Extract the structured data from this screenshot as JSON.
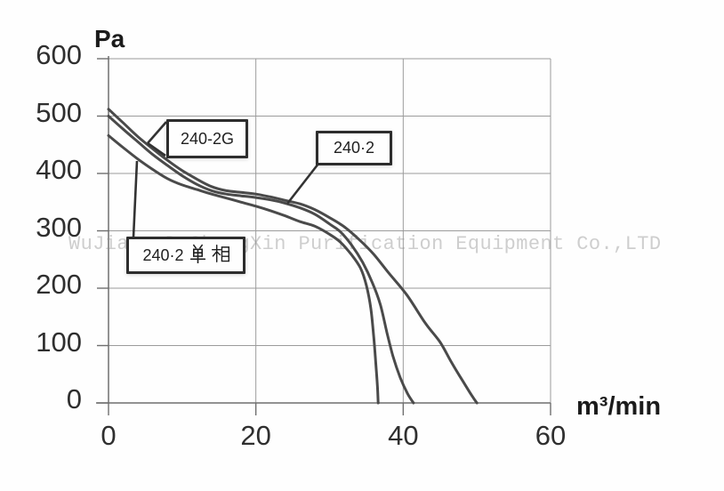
{
  "axes": {
    "y_unit": "Pa",
    "x_unit": "m³/min",
    "y_ticks": [
      600,
      500,
      400,
      300,
      200,
      100,
      0
    ],
    "x_ticks": [
      0,
      20,
      40,
      60
    ]
  },
  "watermark": "WuJiang DeShengXin Purification Equipment Co.,LTD",
  "annotations": [
    {
      "label": "240-2G"
    },
    {
      "label": "240·2"
    },
    {
      "label": "240·2 单相",
      "prefix": "240·2",
      "suffix": "单相"
    }
  ],
  "chart_data": {
    "type": "line",
    "title": "",
    "xlabel": "m³/min",
    "ylabel": "Pa",
    "xlim": [
      0,
      60
    ],
    "ylim": [
      0,
      600
    ],
    "grid": true,
    "legend_position": "callout-boxes-on-plot",
    "series": [
      {
        "name": "240-2G",
        "points": [
          [
            0,
            512
          ],
          [
            2,
            488
          ],
          [
            4,
            464
          ],
          [
            6,
            443
          ],
          [
            8,
            423
          ],
          [
            10,
            405
          ],
          [
            12,
            390
          ],
          [
            14,
            377
          ],
          [
            16,
            370
          ],
          [
            18,
            367
          ],
          [
            20,
            364
          ],
          [
            22,
            359
          ],
          [
            24,
            353
          ],
          [
            26,
            347
          ],
          [
            28,
            337
          ],
          [
            30,
            323
          ],
          [
            32,
            307
          ],
          [
            34,
            285
          ],
          [
            36,
            259
          ],
          [
            38,
            227
          ],
          [
            40.5,
            188
          ],
          [
            43,
            139
          ],
          [
            45,
            106
          ],
          [
            46.5,
            72
          ],
          [
            48,
            40
          ],
          [
            49.3,
            13
          ],
          [
            50,
            0
          ]
        ]
      },
      {
        "name": "240·2",
        "points": [
          [
            0,
            500
          ],
          [
            2,
            477
          ],
          [
            4,
            455
          ],
          [
            6,
            433
          ],
          [
            8,
            414
          ],
          [
            10,
            396
          ],
          [
            12,
            381
          ],
          [
            14,
            370
          ],
          [
            16,
            364
          ],
          [
            18,
            361
          ],
          [
            20,
            358
          ],
          [
            22,
            354
          ],
          [
            24,
            348
          ],
          [
            26,
            340
          ],
          [
            28,
            329
          ],
          [
            30,
            312
          ],
          [
            31.5,
            298
          ],
          [
            33,
            275
          ],
          [
            34.5,
            245
          ],
          [
            35.8,
            210
          ],
          [
            36.9,
            171
          ],
          [
            37.8,
            122
          ],
          [
            38.6,
            82
          ],
          [
            39.6,
            44
          ],
          [
            40.6,
            16
          ],
          [
            41.4,
            0
          ]
        ]
      },
      {
        "name": "240·2 单相",
        "points": [
          [
            0,
            466
          ],
          [
            2,
            445
          ],
          [
            4,
            425
          ],
          [
            6,
            407
          ],
          [
            8,
            391
          ],
          [
            10,
            380
          ],
          [
            12,
            372
          ],
          [
            14,
            364
          ],
          [
            16,
            357
          ],
          [
            18,
            350
          ],
          [
            20,
            343
          ],
          [
            22,
            335
          ],
          [
            24,
            326
          ],
          [
            26,
            316
          ],
          [
            28,
            308
          ],
          [
            30,
            294
          ],
          [
            31.5,
            280
          ],
          [
            33,
            258
          ],
          [
            34.2,
            235
          ],
          [
            35,
            205
          ],
          [
            35.6,
            165
          ],
          [
            36,
            115
          ],
          [
            36.3,
            65
          ],
          [
            36.5,
            30
          ],
          [
            36.6,
            0
          ]
        ]
      }
    ]
  }
}
